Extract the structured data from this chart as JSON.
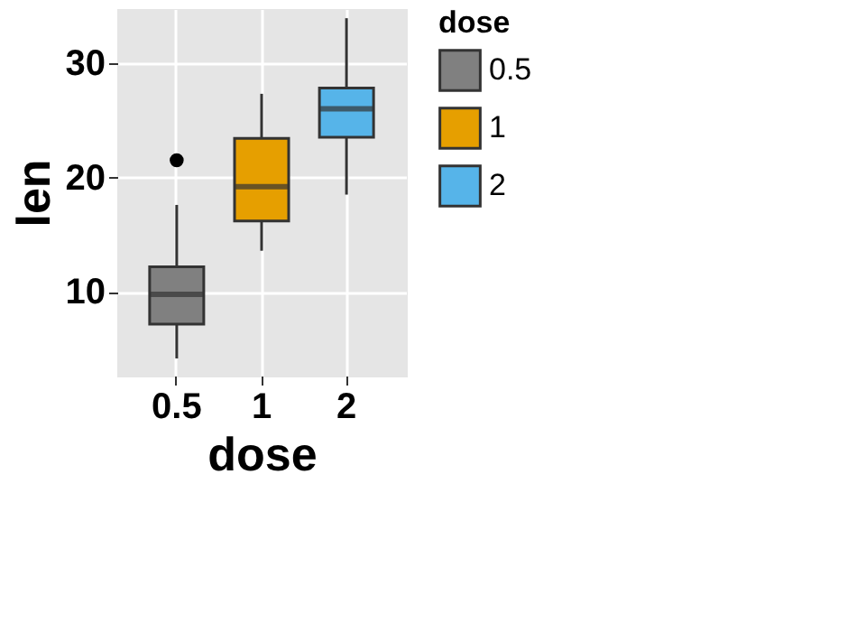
{
  "chart_data": {
    "type": "box",
    "xlabel": "dose",
    "ylabel": "len",
    "legend_title": "dose",
    "categories": [
      "0.5",
      "1",
      "2"
    ],
    "series": [
      {
        "name": "0.5",
        "color": "#808080",
        "boxes": [
          {
            "low": 4.2,
            "q1": 7.2,
            "median": 9.8,
            "q3": 12.2,
            "high": 17.6,
            "outliers": [
              21.5
            ]
          },
          null,
          null
        ]
      },
      {
        "name": "1",
        "color": "#e69f00",
        "boxes": [
          null,
          {
            "low": 13.6,
            "q1": 16.2,
            "median": 19.2,
            "q3": 23.4,
            "high": 27.3
          },
          null
        ]
      },
      {
        "name": "2",
        "color": "#56b4e9",
        "boxes": [
          null,
          null,
          {
            "low": 18.5,
            "q1": 23.5,
            "median": 26.0,
            "q3": 27.8,
            "high": 33.9
          }
        ]
      }
    ],
    "ylim": [
      2.7,
      34.7
    ],
    "yticks": [
      10,
      20,
      30
    ],
    "grid": true,
    "legend": "right"
  }
}
